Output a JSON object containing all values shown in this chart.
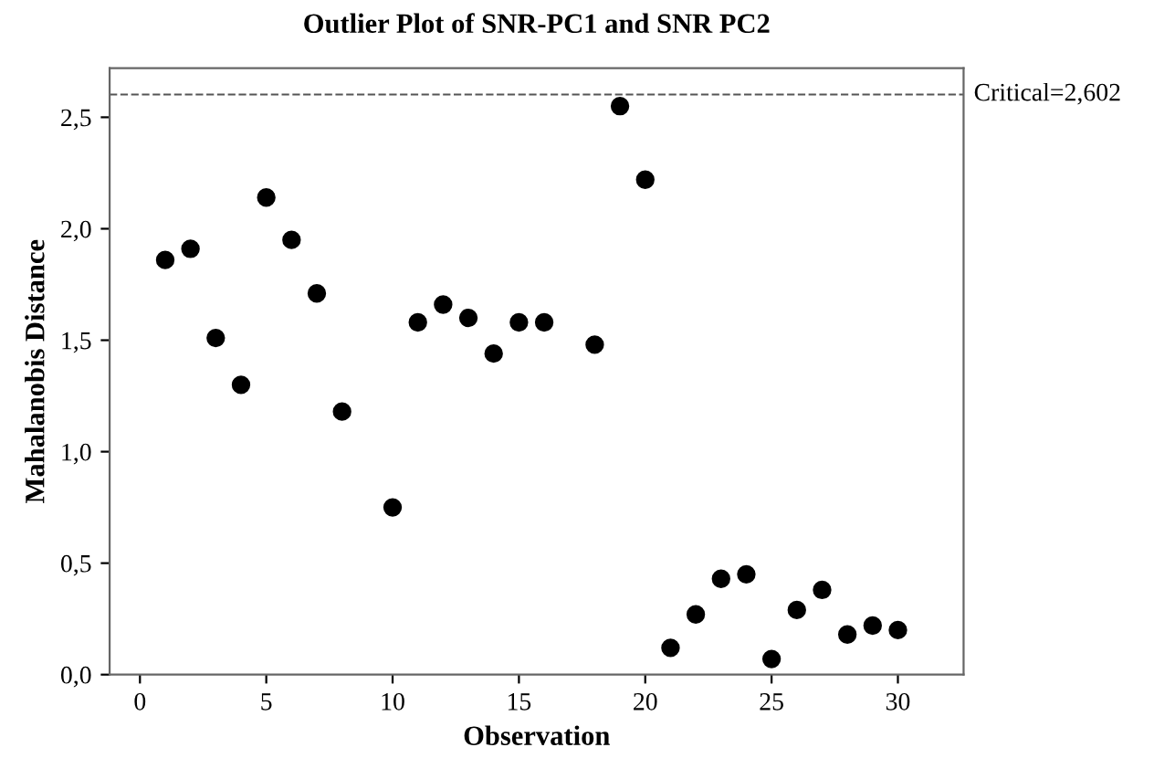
{
  "chart_data": {
    "type": "scatter",
    "title": "Outlier Plot of SNR-PC1 and SNR PC2",
    "xlabel": "Observation",
    "ylabel": "Mahalanobis Distance",
    "x": [
      1,
      2,
      3,
      4,
      5,
      6,
      7,
      8,
      10,
      11,
      12,
      13,
      14,
      15,
      16,
      18,
      19,
      20,
      21,
      22,
      23,
      24,
      25,
      26,
      27,
      28,
      29,
      30
    ],
    "series": [
      {
        "color": "#000000",
        "values": [
          1.86,
          1.91,
          1.51,
          1.3,
          2.14,
          1.95,
          1.71,
          1.18,
          0.75,
          1.58,
          1.66,
          1.6,
          1.44,
          1.58,
          1.58,
          1.48,
          2.55,
          2.22,
          0.12,
          0.27,
          0.43,
          0.45,
          0.07,
          0.29,
          0.38,
          0.18,
          0.22,
          0.2
        ]
      }
    ],
    "marker": "circle",
    "xlim": [
      -1.2,
      32.6
    ],
    "xticks": [
      0,
      5,
      10,
      15,
      20,
      25,
      30
    ],
    "ylim": [
      0,
      2.72
    ],
    "yticks": [
      {
        "value": 0,
        "label": "0,0"
      },
      {
        "value": 0.5,
        "label": "0,5"
      },
      {
        "value": 1.0,
        "label": "1,0"
      },
      {
        "value": 1.5,
        "label": "1,5"
      },
      {
        "value": 2.0,
        "label": "2,0"
      },
      {
        "value": 2.5,
        "label": "2,5"
      }
    ],
    "ref_lines": [
      {
        "axis": "y",
        "value": 2.602,
        "label": "Critical=2,602",
        "color": "#555555",
        "line_style": "dashed"
      }
    ],
    "grid": false,
    "legend": false
  }
}
